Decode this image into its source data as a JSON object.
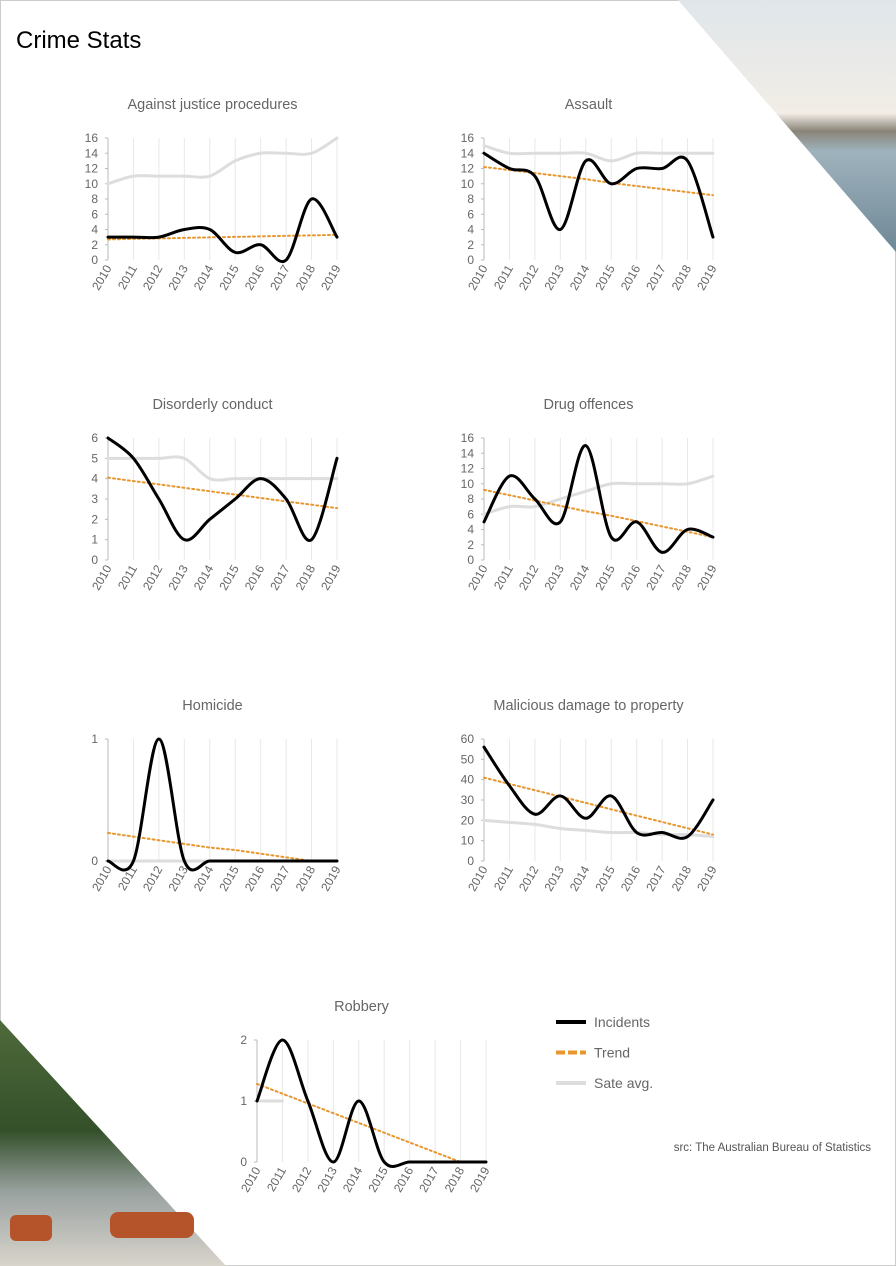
{
  "title": "Crime Stats",
  "source": "src: The Australian Bureau of Statistics",
  "legend": [
    {
      "name": "Incidents",
      "color": "#000000"
    },
    {
      "name": "Trend",
      "color": "#e8962e"
    },
    {
      "name": "Sate avg.",
      "color": "#dddddd"
    }
  ],
  "chart_data": [
    {
      "type": "line",
      "title": "Against justice procedures",
      "categories": [
        "2010",
        "2011",
        "2012",
        "2013",
        "2014",
        "2015",
        "2016",
        "2017",
        "2018",
        "2019"
      ],
      "series": [
        {
          "values": [
            3,
            3,
            3,
            4,
            4,
            1,
            2,
            0,
            8,
            3
          ]
        },
        {
          "values": [
            2.7,
            2.77,
            2.83,
            2.9,
            2.97,
            3.03,
            3.1,
            3.17,
            3.23,
            3.3
          ]
        },
        {
          "values": [
            10,
            11,
            11,
            11,
            11,
            13,
            14,
            14,
            14,
            16
          ]
        }
      ],
      "ylim": [
        0,
        16
      ],
      "yticks": [
        0,
        2,
        4,
        6,
        8,
        10,
        12,
        14,
        16
      ]
    },
    {
      "type": "line",
      "title": "Assault",
      "categories": [
        "2010",
        "2011",
        "2012",
        "2013",
        "2014",
        "2015",
        "2016",
        "2017",
        "2018",
        "2019"
      ],
      "series": [
        {
          "values": [
            14,
            12,
            11,
            4,
            13,
            10,
            12,
            12,
            13,
            3
          ]
        },
        {
          "values": [
            12.2,
            11.8,
            11.4,
            11.0,
            10.6,
            10.1,
            9.7,
            9.3,
            8.9,
            8.5
          ]
        },
        {
          "values": [
            15,
            14,
            14,
            14,
            14,
            13,
            14,
            14,
            14,
            14
          ]
        }
      ],
      "ylim": [
        0,
        16
      ],
      "yticks": [
        0,
        2,
        4,
        6,
        8,
        10,
        12,
        14,
        16
      ]
    },
    {
      "type": "line",
      "title": "Disorderly conduct",
      "categories": [
        "2010",
        "2011",
        "2012",
        "2013",
        "2014",
        "2015",
        "2016",
        "2017",
        "2018",
        "2019"
      ],
      "series": [
        {
          "values": [
            6,
            5,
            3,
            1,
            2,
            3,
            4,
            3,
            1,
            5
          ]
        },
        {
          "values": [
            4.05,
            3.88,
            3.72,
            3.55,
            3.38,
            3.22,
            3.05,
            2.88,
            2.72,
            2.55
          ]
        },
        {
          "values": [
            5,
            5,
            5,
            5,
            4,
            4,
            4,
            4,
            4,
            4
          ]
        }
      ],
      "ylim": [
        0,
        6
      ],
      "yticks": [
        0,
        1,
        2,
        3,
        4,
        5,
        6
      ]
    },
    {
      "type": "line",
      "title": "Drug offences",
      "categories": [
        "2010",
        "2011",
        "2012",
        "2013",
        "2014",
        "2015",
        "2016",
        "2017",
        "2018",
        "2019"
      ],
      "series": [
        {
          "values": [
            5,
            11,
            8,
            5,
            15,
            3,
            5,
            1,
            4,
            3
          ]
        },
        {
          "values": [
            9.2,
            8.5,
            7.8,
            7.1,
            6.4,
            5.8,
            5.1,
            4.4,
            3.7,
            3.0
          ]
        },
        {
          "values": [
            6,
            7,
            7,
            8,
            9,
            10,
            10,
            10,
            10,
            11
          ]
        }
      ],
      "ylim": [
        0,
        16
      ],
      "yticks": [
        0,
        2,
        4,
        6,
        8,
        10,
        12,
        14,
        16
      ]
    },
    {
      "type": "line",
      "title": "Homicide",
      "categories": [
        "2010",
        "2011",
        "2012",
        "2013",
        "2014",
        "2015",
        "2016",
        "2017",
        "2018",
        "2019"
      ],
      "series": [
        {
          "values": [
            0,
            0,
            1,
            0,
            0,
            0,
            0,
            0,
            0,
            0
          ]
        },
        {
          "values": [
            0.23,
            0.2,
            0.17,
            0.14,
            0.11,
            0.09,
            0.06,
            0.03,
            0,
            null
          ]
        },
        {
          "values": [
            0,
            0,
            0,
            0,
            0,
            0,
            0,
            0,
            0,
            0
          ]
        }
      ],
      "ylim": [
        0,
        1
      ],
      "yticks": [
        0,
        1
      ]
    },
    {
      "type": "line",
      "title": "Malicious damage to property",
      "categories": [
        "2010",
        "2011",
        "2012",
        "2013",
        "2014",
        "2015",
        "2016",
        "2017",
        "2018",
        "2019"
      ],
      "series": [
        {
          "values": [
            56,
            37,
            23,
            32,
            21,
            32,
            14,
            14,
            12,
            30
          ]
        },
        {
          "values": [
            41,
            37.9,
            34.8,
            31.7,
            28.6,
            25.4,
            22.3,
            19.2,
            16.1,
            13
          ]
        },
        {
          "values": [
            20,
            19,
            18,
            16,
            15,
            14,
            14,
            13,
            13,
            12
          ]
        }
      ],
      "ylim": [
        0,
        60
      ],
      "yticks": [
        0,
        10,
        20,
        30,
        40,
        50,
        60
      ]
    },
    {
      "type": "line",
      "title": "Robbery",
      "categories": [
        "2010",
        "2011",
        "2012",
        "2013",
        "2014",
        "2015",
        "2016",
        "2017",
        "2018",
        "2019"
      ],
      "series": [
        {
          "values": [
            1,
            2,
            1,
            0,
            1,
            0,
            0,
            0,
            0,
            0
          ]
        },
        {
          "values": [
            1.28,
            1.12,
            0.96,
            0.8,
            0.64,
            0.48,
            0.32,
            0.16,
            0,
            null
          ]
        },
        {
          "values": [
            1,
            1,
            null,
            null,
            null,
            null,
            null,
            null,
            null,
            null
          ]
        }
      ],
      "ylim": [
        0,
        2
      ],
      "yticks": [
        0,
        1,
        2
      ]
    }
  ]
}
